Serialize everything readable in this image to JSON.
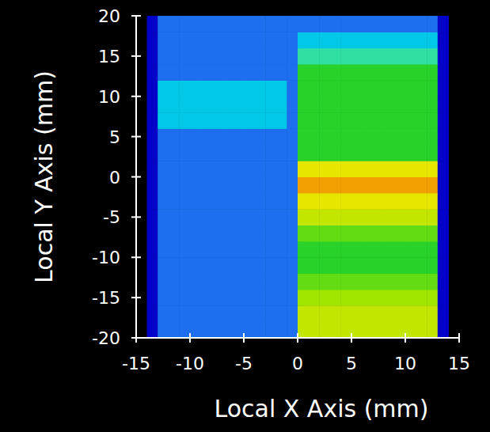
{
  "chart_data": {
    "type": "heatmap",
    "x_label": "Local X Axis (mm)",
    "y_label": "Local Y Axis (mm)",
    "xlim": [
      -15,
      15
    ],
    "ylim": [
      -20,
      20
    ],
    "xticks": [
      -15,
      -10,
      -5,
      0,
      5,
      10,
      15
    ],
    "yticks": [
      -20,
      -15,
      -10,
      -5,
      0,
      5,
      10,
      15,
      20
    ],
    "x_edges": [
      -14,
      -13,
      -11,
      -9,
      -7,
      -5,
      -3,
      -1,
      0,
      2,
      4,
      6,
      8,
      10,
      12,
      13,
      14
    ],
    "y_edges": [
      -20,
      -18,
      -16,
      -14,
      -12,
      -10,
      -8,
      -6,
      -4,
      -2,
      0,
      2,
      4,
      6,
      8,
      10,
      12,
      14,
      16,
      18,
      20
    ],
    "zlim": [
      1,
      8
    ],
    "cells": [
      [
        1,
        2,
        2,
        2,
        2,
        2,
        2,
        2,
        6.5,
        6.5,
        6.5,
        6.5,
        6.5,
        6.5,
        6.5,
        1
      ],
      [
        1,
        2,
        2,
        2,
        2,
        2,
        2,
        2,
        6.5,
        6.5,
        6.5,
        6.5,
        6.5,
        6.5,
        6.5,
        1
      ],
      [
        1,
        2,
        2,
        2,
        2,
        2,
        2,
        2,
        6,
        6,
        6,
        6,
        6,
        6,
        6,
        1
      ],
      [
        1,
        2,
        2,
        2,
        2,
        2,
        2,
        2,
        5.5,
        5.5,
        5.5,
        5.5,
        5.5,
        5.5,
        5.5,
        1
      ],
      [
        1,
        2,
        2,
        2,
        2,
        2,
        2,
        2,
        5,
        5,
        5,
        5,
        5,
        5,
        5,
        1
      ],
      [
        1,
        2,
        2,
        2,
        2,
        2,
        2,
        2,
        5,
        5,
        5,
        5,
        5,
        5,
        5,
        1
      ],
      [
        1,
        2,
        2,
        2,
        2,
        2,
        2,
        2,
        5.5,
        5.5,
        5.5,
        5.5,
        5.5,
        5.5,
        5.5,
        1
      ],
      [
        1,
        2,
        2,
        2,
        2,
        2,
        2,
        2,
        6.5,
        6.5,
        6.5,
        6.5,
        6.5,
        6.5,
        6.5,
        1
      ],
      [
        1,
        2,
        2,
        2,
        2,
        2,
        2,
        2,
        7,
        7,
        7,
        7,
        7,
        7,
        7,
        1
      ],
      [
        1,
        2,
        2,
        2,
        2,
        2,
        2,
        2,
        8,
        8,
        8,
        8,
        8,
        8,
        8,
        1
      ],
      [
        1,
        2,
        2,
        2,
        2,
        2,
        2,
        2,
        7,
        7,
        7,
        7,
        7,
        7,
        7,
        1
      ],
      [
        1,
        2,
        2,
        2,
        2,
        2,
        2,
        2,
        5,
        5,
        5,
        5,
        5,
        5,
        5,
        1
      ],
      [
        1,
        2,
        2,
        2,
        2,
        2,
        2,
        2,
        5,
        5,
        5,
        5,
        5,
        5,
        5,
        1
      ],
      [
        1,
        3,
        3,
        3,
        3,
        3,
        3,
        2,
        5,
        5,
        5,
        5,
        5,
        5,
        5,
        1
      ],
      [
        1,
        3,
        3,
        3,
        3,
        3,
        3,
        2,
        5,
        5,
        5,
        5,
        5,
        5,
        5,
        1
      ],
      [
        1,
        3,
        3,
        3,
        3,
        3,
        3,
        2,
        5,
        5,
        5,
        5,
        5,
        5,
        5,
        1
      ],
      [
        1,
        2,
        2,
        2,
        2,
        2,
        2,
        2,
        5,
        5,
        5,
        5,
        5,
        5,
        5,
        1
      ],
      [
        1,
        2,
        2,
        2,
        2,
        2,
        2,
        2,
        4,
        4,
        4,
        4,
        4,
        4,
        4,
        1
      ],
      [
        1,
        2,
        2,
        2,
        2,
        2,
        2,
        2,
        3,
        3,
        3,
        3,
        3,
        3,
        3,
        1
      ],
      [
        1,
        2,
        2,
        2,
        2,
        2,
        2,
        2,
        2,
        2,
        2,
        2,
        2,
        2,
        2,
        1
      ]
    ]
  }
}
